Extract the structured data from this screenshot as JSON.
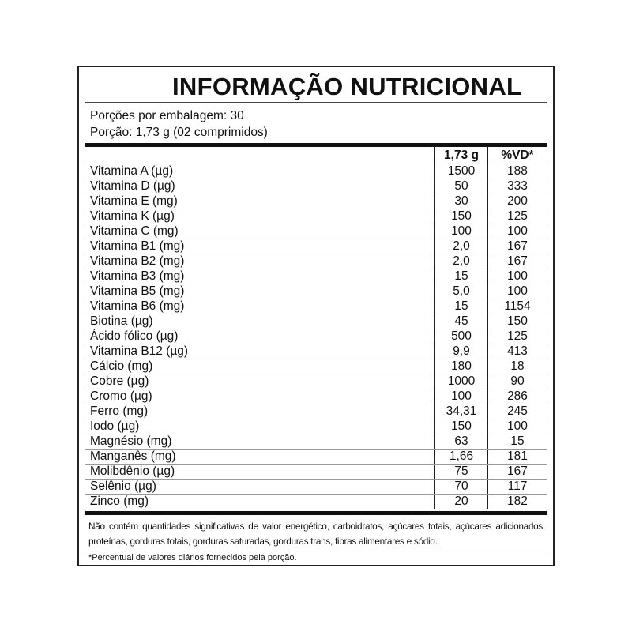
{
  "title": "INFORMAÇÃO NUTRICIONAL",
  "servings_per_package": "Porções por embalagem: 30",
  "serving_size": "Porção: 1,73 g (02 comprimidos)",
  "columns": [
    "",
    "1,73 g",
    "%VD*"
  ],
  "rows": [
    [
      "Vitamina A (µg)",
      "1500",
      "188"
    ],
    [
      "Vitamina D (µg)",
      "50",
      "333"
    ],
    [
      "Vitamina E (mg)",
      "30",
      "200"
    ],
    [
      "Vitamina K (µg)",
      "150",
      "125"
    ],
    [
      "Vitamina C (mg)",
      "100",
      "100"
    ],
    [
      "Vitamina B1 (mg)",
      "2,0",
      "167"
    ],
    [
      "Vitamina B2 (mg)",
      "2,0",
      "167"
    ],
    [
      "Vitamina B3 (mg)",
      "15",
      "100"
    ],
    [
      "Vitamina B5 (mg)",
      "5,0",
      "100"
    ],
    [
      "Vitamina B6 (mg)",
      "15",
      "1154"
    ],
    [
      "Biotina (µg)",
      "45",
      "150"
    ],
    [
      "Ácido fólico (µg)",
      "500",
      "125"
    ],
    [
      "Vitamina B12 (µg)",
      "9,9",
      "413"
    ],
    [
      "Cálcio (mg)",
      "180",
      "18"
    ],
    [
      "Cobre (µg)",
      "1000",
      "90"
    ],
    [
      "Cromo (µg)",
      "100",
      "286"
    ],
    [
      "Ferro (mg)",
      "34,31",
      "245"
    ],
    [
      "Iodo (µg)",
      "150",
      "100"
    ],
    [
      "Magnésio (mg)",
      "63",
      "15"
    ],
    [
      "Manganês (mg)",
      "1,66",
      "181"
    ],
    [
      "Molibdênio (µg)",
      "75",
      "167"
    ],
    [
      "Selênio (µg)",
      "70",
      "117"
    ],
    [
      "Zinco (mg)",
      "20",
      "182"
    ]
  ],
  "disclaimer": "Não contém quantidades significativas de valor energético, carboidratos, açúcares totais, açúcares adicionados, proteínas, gorduras totais, gorduras saturadas, gorduras trans, fibras alimentares e sódio.",
  "footnote": "*Percentual de valores diários fornecidos pela porção."
}
